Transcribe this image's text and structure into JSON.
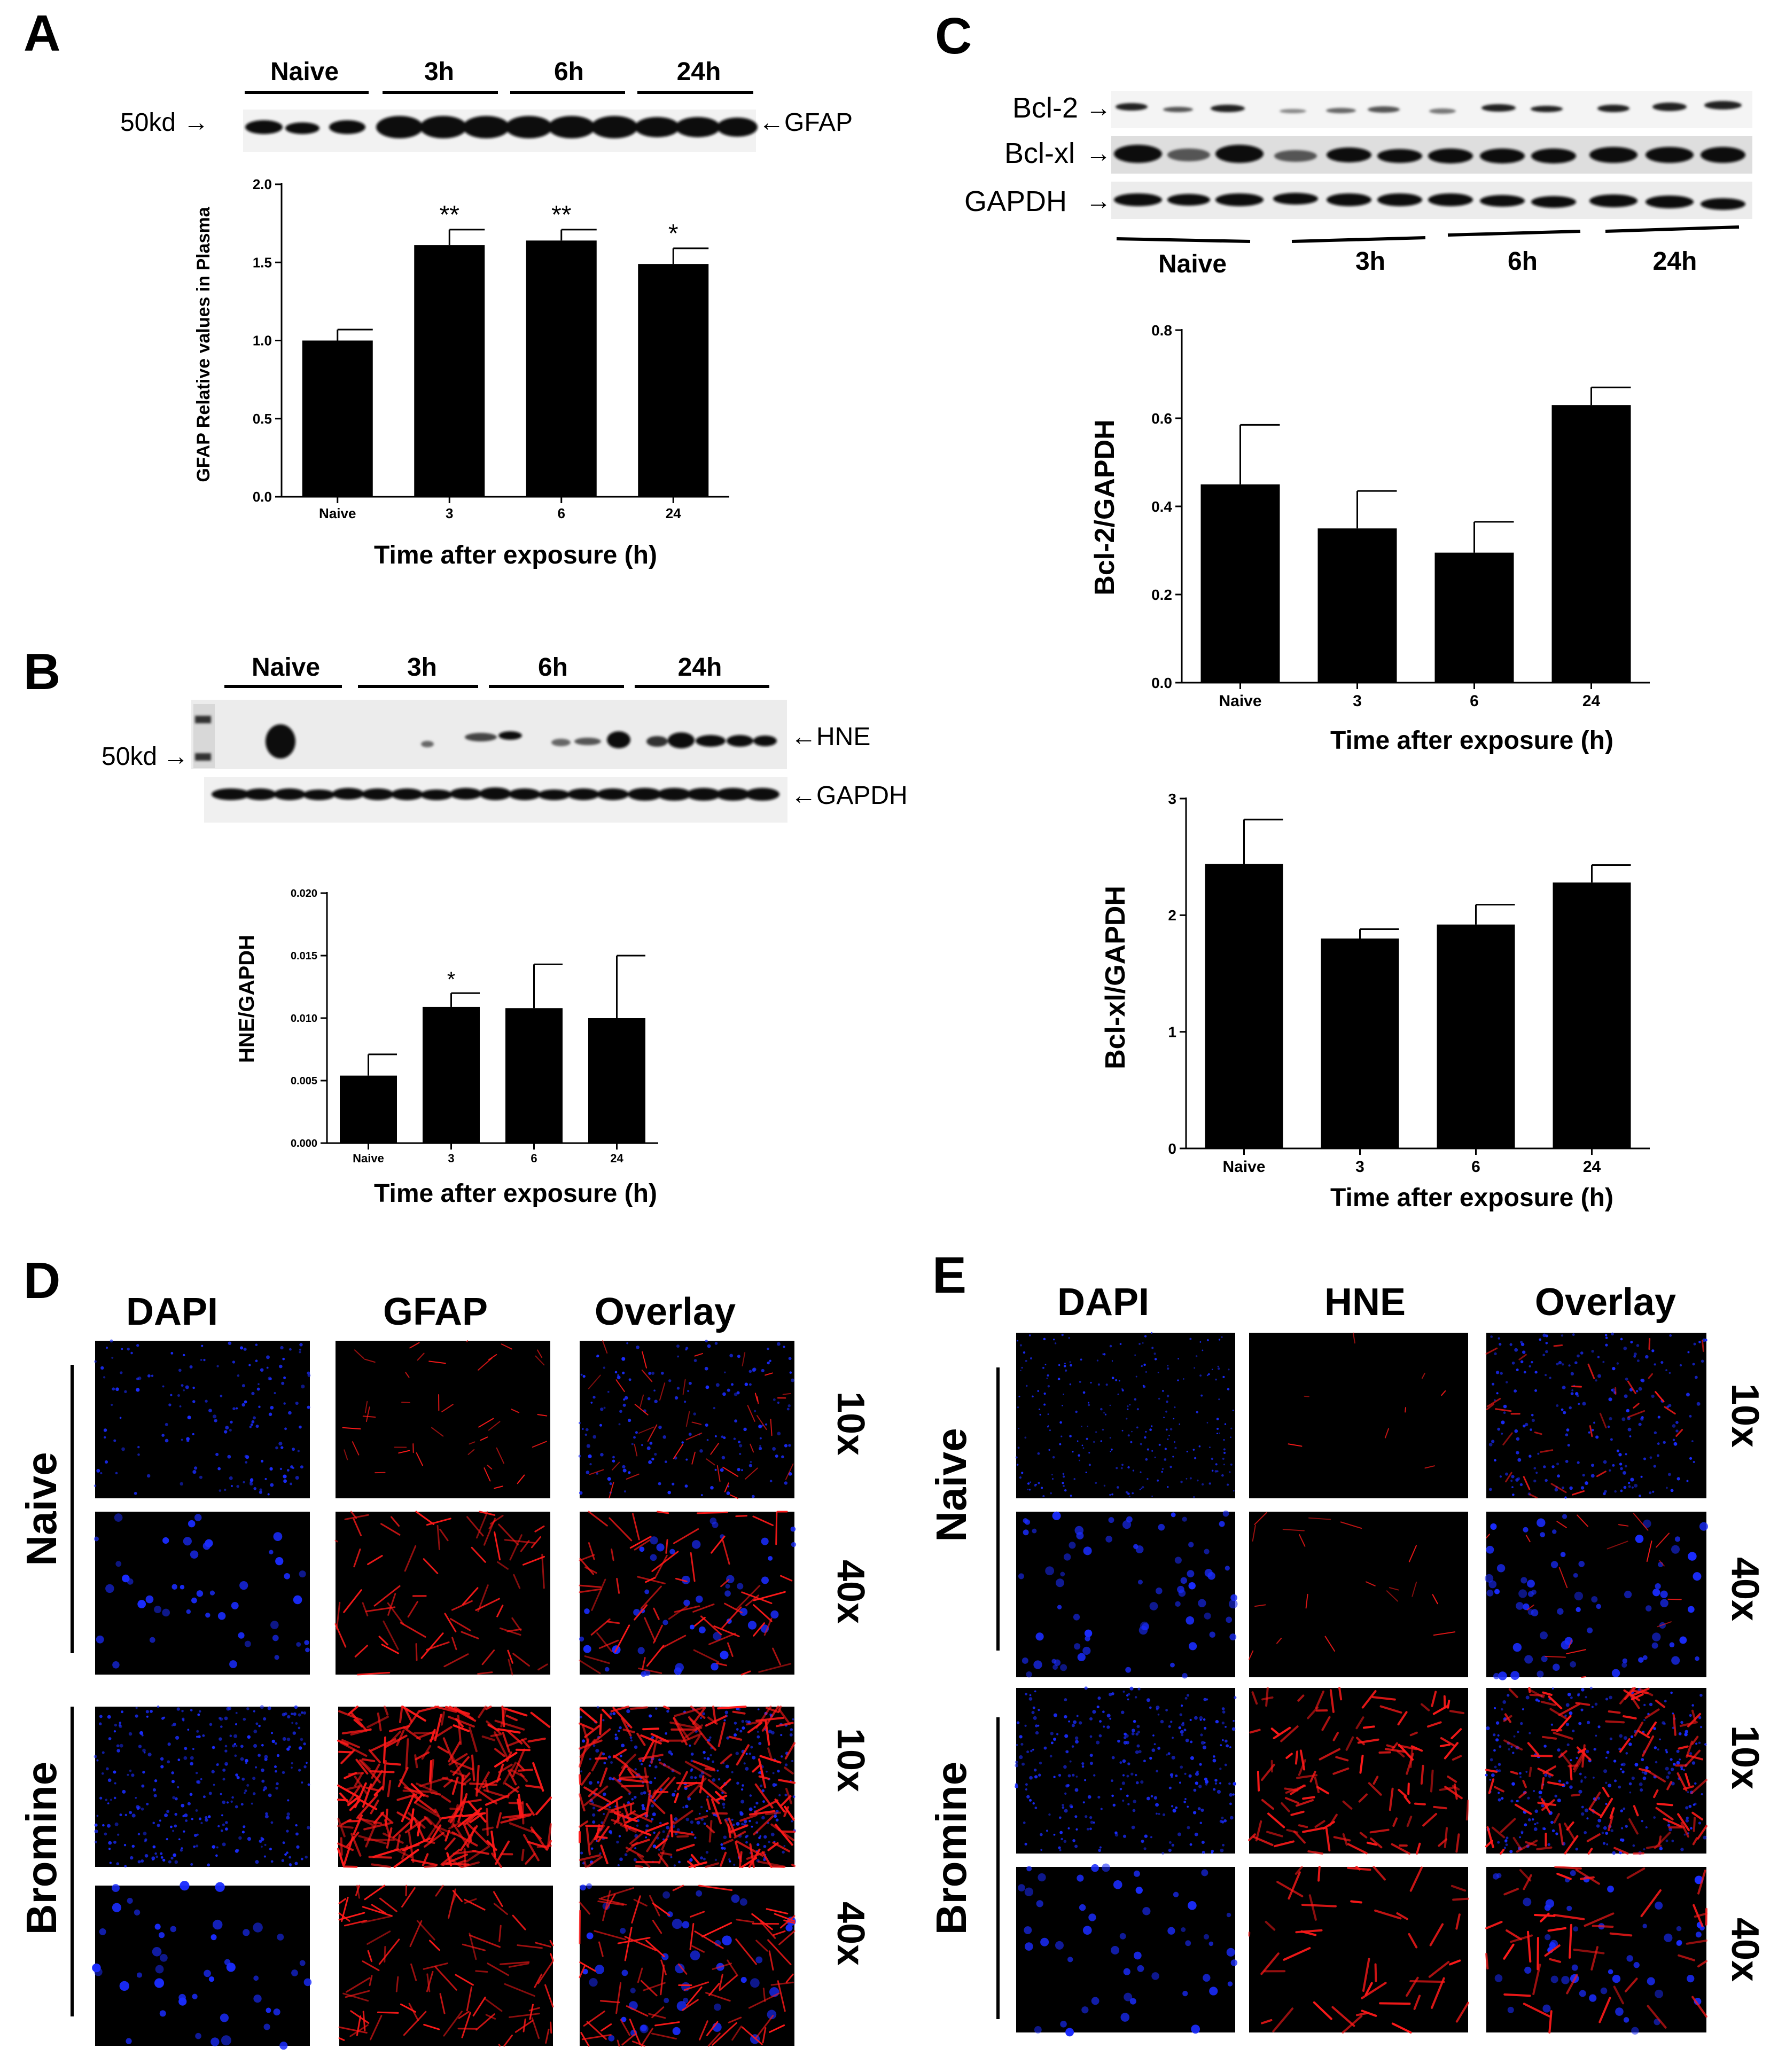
{
  "panels": {
    "A": {
      "letter": "A",
      "blot": {
        "groups": [
          "Naive",
          "3h",
          "6h",
          "24h"
        ],
        "marker": "50kd",
        "band_label": "GFAP"
      },
      "chart": {
        "ylabel": "GFAP Relative values in Plasma",
        "xlabel": "Time after exposure (h)"
      }
    },
    "B": {
      "letter": "B",
      "blot": {
        "groups": [
          "Naive",
          "3h",
          "6h",
          "24h"
        ],
        "marker": "50kd",
        "band_labels": [
          "HNE",
          "GAPDH"
        ]
      },
      "chart": {
        "ylabel": "HNE/GAPDH",
        "xlabel": "Time after exposure (h)"
      }
    },
    "C": {
      "letter": "C",
      "blot": {
        "rows": [
          "Bcl-2",
          "Bcl-xl",
          "GAPDH"
        ],
        "groups": [
          "Naive",
          "3h",
          "6h",
          "24h"
        ]
      },
      "chart1": {
        "ylabel": "Bcl-2/GAPDH",
        "xlabel": "Time after exposure (h)"
      },
      "chart2": {
        "ylabel": "Bcl-xl/GAPDH",
        "xlabel": "Time after exposure (h)"
      }
    },
    "D": {
      "letter": "D",
      "columns": [
        "DAPI",
        "GFAP",
        "Overlay"
      ],
      "groups": [
        "Naive",
        "Bromine"
      ],
      "magnifications": [
        "10x",
        "40x",
        "10x",
        "40x"
      ]
    },
    "E": {
      "letter": "E",
      "columns": [
        "DAPI",
        "HNE",
        "Overlay"
      ],
      "groups": [
        "Naive",
        "Bromine"
      ],
      "magnifications": [
        "10x",
        "40x",
        "10x",
        "40x"
      ]
    }
  },
  "colors": {
    "bar": "#000000",
    "dapi": "#1a2cff",
    "red": "#ff1a1a",
    "background": "#000000"
  },
  "chart_data": [
    {
      "type": "bar",
      "title": "",
      "xlabel": "Time after exposure (h)",
      "ylabel": "GFAP Relative values in Plasma",
      "categories": [
        "Naive",
        "3",
        "6",
        "24"
      ],
      "values": [
        1.0,
        1.61,
        1.64,
        1.49
      ],
      "errors": [
        0.07,
        0.1,
        0.07,
        0.1
      ],
      "annotations": [
        "",
        "**",
        "**",
        "*"
      ],
      "ylim": [
        0,
        2.0
      ],
      "yticks": [
        "0.0",
        "0.5",
        "1.0",
        "1.5",
        "2.0"
      ]
    },
    {
      "type": "bar",
      "title": "",
      "xlabel": "Time after exposure (h)",
      "ylabel": "HNE/GAPDH",
      "categories": [
        "Naive",
        "3",
        "6",
        "24"
      ],
      "values": [
        0.0054,
        0.0109,
        0.0108,
        0.01
      ],
      "errors": [
        0.0017,
        0.0011,
        0.0035,
        0.005
      ],
      "annotations": [
        "",
        "*",
        "",
        ""
      ],
      "ylim": [
        0,
        0.02
      ],
      "yticks": [
        "0.000",
        "0.005",
        "0.010",
        "0.015",
        "0.020"
      ]
    },
    {
      "type": "bar",
      "title": "",
      "xlabel": "Time after exposure (h)",
      "ylabel": "Bcl-2/GAPDH",
      "categories": [
        "Naive",
        "3",
        "6",
        "24"
      ],
      "values": [
        0.45,
        0.35,
        0.295,
        0.63
      ],
      "errors": [
        0.135,
        0.085,
        0.07,
        0.04
      ],
      "annotations": [
        "",
        "",
        "",
        ""
      ],
      "ylim": [
        0,
        0.8
      ],
      "yticks": [
        "0.0",
        "0.2",
        "0.4",
        "0.6",
        "0.8"
      ]
    },
    {
      "type": "bar",
      "title": "",
      "xlabel": "Time after exposure (h)",
      "ylabel": "Bcl-xl/GAPDH",
      "categories": [
        "Naive",
        "3",
        "6",
        "24"
      ],
      "values": [
        2.44,
        1.8,
        1.92,
        2.28
      ],
      "errors": [
        0.38,
        0.08,
        0.17,
        0.15
      ],
      "annotations": [
        "",
        "",
        "",
        ""
      ],
      "ylim": [
        0,
        3
      ],
      "yticks": [
        "0",
        "1",
        "2",
        "3"
      ]
    }
  ]
}
